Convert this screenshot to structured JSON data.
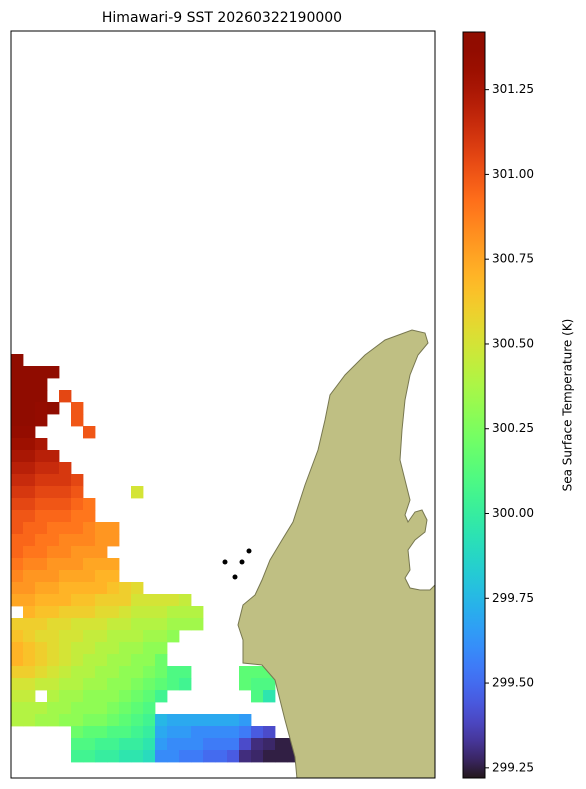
{
  "chart_data": {
    "type": "heatmap",
    "title": "Himawari-9 SST 20260322190000",
    "colorbar_label": "Sea Surface Temperature (K)",
    "colormap": "turbo",
    "clim": [
      299.22,
      301.42
    ],
    "cticks": [
      299.25,
      {
        "value": 299.5,
        "label": "299.50"
      },
      299.75,
      {
        "value": 300,
        "label": "300.00"
      },
      300.25,
      {
        "value": 300.5,
        "label": "300.50"
      },
      300.75,
      {
        "value": 301,
        "label": "301.00"
      },
      301.25
    ],
    "land_color": "#bfbf83",
    "values": [
      [
        301.4,
        null,
        null,
        null,
        null,
        null,
        null,
        null,
        null,
        null,
        null,
        null,
        null,
        null,
        null,
        null,
        null,
        null,
        null,
        null,
        null,
        null,
        null,
        null
      ],
      [
        301.4,
        301.4,
        301.4,
        301.4,
        null,
        null,
        null,
        null,
        null,
        null,
        null,
        null,
        null,
        null,
        null,
        null,
        null,
        null,
        null,
        null,
        null,
        null,
        null,
        null
      ],
      [
        301.4,
        301.4,
        301.4,
        null,
        null,
        null,
        null,
        null,
        null,
        null,
        null,
        null,
        null,
        null,
        null,
        null,
        null,
        null,
        null,
        null,
        null,
        null,
        null,
        null
      ],
      [
        301.4,
        301.4,
        301.4,
        null,
        301.05,
        null,
        null,
        null,
        null,
        null,
        null,
        null,
        null,
        null,
        null,
        null,
        null,
        null,
        null,
        null,
        null,
        null,
        null,
        null
      ],
      [
        301.4,
        301.4,
        301.35,
        301.4,
        null,
        301.0,
        null,
        null,
        null,
        null,
        null,
        null,
        null,
        null,
        null,
        null,
        null,
        null,
        null,
        null,
        null,
        null,
        null,
        null
      ],
      [
        301.4,
        301.4,
        301.35,
        null,
        null,
        301.0,
        null,
        null,
        null,
        null,
        null,
        null,
        null,
        null,
        null,
        null,
        null,
        null,
        null,
        null,
        null,
        null,
        null,
        null
      ],
      [
        301.35,
        301.35,
        null,
        null,
        null,
        null,
        301.0,
        null,
        null,
        null,
        null,
        null,
        null,
        null,
        null,
        null,
        null,
        null,
        null,
        null,
        null,
        null,
        null,
        null
      ],
      [
        301.3,
        301.3,
        301.25,
        null,
        null,
        null,
        null,
        null,
        null,
        null,
        null,
        null,
        null,
        null,
        null,
        null,
        null,
        null,
        null,
        null,
        null,
        null,
        null,
        null
      ],
      [
        301.25,
        301.25,
        301.2,
        301.2,
        null,
        null,
        null,
        null,
        null,
        null,
        null,
        null,
        null,
        null,
        null,
        null,
        null,
        null,
        null,
        null,
        null,
        null,
        null,
        null
      ],
      [
        301.2,
        301.2,
        301.15,
        301.15,
        301.1,
        null,
        null,
        null,
        null,
        null,
        null,
        null,
        null,
        null,
        null,
        null,
        null,
        null,
        null,
        null,
        null,
        null,
        null,
        null
      ],
      [
        301.15,
        301.15,
        301.1,
        301.1,
        301.1,
        301.05,
        null,
        null,
        null,
        null,
        null,
        null,
        null,
        null,
        null,
        null,
        null,
        null,
        null,
        null,
        null,
        null,
        null,
        null
      ],
      [
        301.1,
        301.1,
        301.05,
        301.05,
        301.05,
        301.0,
        null,
        null,
        null,
        null,
        300.5,
        null,
        null,
        null,
        null,
        null,
        null,
        null,
        null,
        null,
        null,
        null,
        null,
        null
      ],
      [
        301.05,
        301.05,
        301.0,
        301.0,
        301.0,
        300.95,
        300.9,
        null,
        null,
        null,
        null,
        null,
        null,
        null,
        null,
        null,
        null,
        null,
        null,
        null,
        null,
        null,
        null,
        null
      ],
      [
        301.0,
        301.0,
        300.95,
        300.95,
        300.95,
        300.9,
        300.9,
        null,
        null,
        null,
        null,
        null,
        null,
        null,
        null,
        null,
        null,
        null,
        null,
        null,
        null,
        null,
        null,
        null
      ],
      [
        301.0,
        300.95,
        300.95,
        300.9,
        300.9,
        300.9,
        300.85,
        300.8,
        300.8,
        null,
        null,
        null,
        null,
        null,
        null,
        null,
        null,
        null,
        null,
        null,
        null,
        null,
        null,
        null
      ],
      [
        300.95,
        300.95,
        300.9,
        300.9,
        300.85,
        300.85,
        300.85,
        300.8,
        300.8,
        null,
        null,
        null,
        null,
        null,
        null,
        null,
        null,
        null,
        null,
        null,
        null,
        null,
        null,
        null
      ],
      [
        300.95,
        300.9,
        300.9,
        300.85,
        300.85,
        300.8,
        300.8,
        300.8,
        null,
        null,
        null,
        null,
        null,
        null,
        null,
        null,
        null,
        null,
        null,
        null,
        null,
        null,
        null,
        null
      ],
      [
        300.9,
        300.85,
        300.85,
        300.8,
        300.8,
        300.8,
        300.75,
        300.75,
        300.75,
        null,
        null,
        null,
        null,
        null,
        null,
        null,
        null,
        null,
        null,
        null,
        null,
        null,
        null,
        null
      ],
      [
        300.85,
        300.8,
        300.8,
        300.8,
        300.75,
        300.75,
        300.75,
        300.7,
        300.7,
        null,
        null,
        null,
        null,
        null,
        null,
        null,
        null,
        null,
        null,
        null,
        null,
        null,
        null,
        null
      ],
      [
        300.8,
        300.8,
        300.75,
        300.75,
        300.7,
        300.7,
        300.7,
        300.7,
        300.65,
        300.6,
        300.55,
        null,
        null,
        null,
        null,
        null,
        null,
        null,
        null,
        null,
        null,
        null,
        null,
        null
      ],
      [
        300.75,
        300.75,
        300.7,
        300.7,
        300.7,
        300.65,
        300.65,
        300.6,
        300.6,
        300.6,
        300.5,
        300.5,
        300.5,
        300.5,
        300.45,
        null,
        null,
        null,
        null,
        null,
        null,
        null,
        null,
        null
      ],
      [
        null,
        300.7,
        300.65,
        300.65,
        300.6,
        300.6,
        300.6,
        300.55,
        300.55,
        300.5,
        300.45,
        300.45,
        300.45,
        300.4,
        300.4,
        300.4,
        null,
        null,
        null,
        null,
        null,
        null,
        null,
        null
      ],
      [
        300.6,
        300.6,
        300.6,
        300.55,
        300.55,
        300.5,
        300.5,
        300.5,
        300.45,
        300.45,
        300.4,
        300.4,
        300.4,
        300.35,
        300.35,
        300.35,
        null,
        null,
        null,
        null,
        null,
        null,
        null,
        null
      ],
      [
        300.65,
        300.6,
        300.55,
        300.55,
        300.5,
        300.5,
        300.45,
        300.45,
        300.4,
        300.4,
        300.4,
        300.35,
        300.35,
        300.3,
        null,
        null,
        null,
        null,
        null,
        null,
        null,
        null,
        null,
        null
      ],
      [
        300.7,
        300.65,
        300.6,
        300.55,
        300.5,
        300.45,
        300.45,
        300.4,
        300.4,
        300.35,
        300.35,
        300.3,
        300.3,
        null,
        null,
        null,
        null,
        null,
        null,
        null,
        null,
        null,
        null,
        null
      ],
      [
        300.7,
        300.65,
        300.6,
        300.55,
        300.5,
        300.45,
        300.4,
        300.4,
        300.35,
        300.35,
        300.3,
        300.3,
        300.2,
        null,
        null,
        null,
        null,
        null,
        null,
        null,
        null,
        null,
        null,
        null
      ],
      [
        300.6,
        300.6,
        300.55,
        300.5,
        300.45,
        300.4,
        300.4,
        300.35,
        300.35,
        300.3,
        300.3,
        300.25,
        300.2,
        300.1,
        300.1,
        null,
        null,
        null,
        null,
        300.15,
        300.15,
        300.15,
        null,
        null
      ],
      [
        300.5,
        300.5,
        300.45,
        300.45,
        300.4,
        300.4,
        300.35,
        300.35,
        300.3,
        300.3,
        300.25,
        300.2,
        300.15,
        300.1,
        300.05,
        null,
        null,
        null,
        null,
        300.15,
        300.1,
        300.1,
        null,
        null
      ],
      [
        300.45,
        300.45,
        null,
        300.4,
        300.35,
        300.35,
        300.3,
        300.3,
        300.3,
        300.25,
        300.2,
        300.15,
        300.05,
        null,
        null,
        null,
        null,
        null,
        null,
        null,
        300.1,
        299.95,
        null,
        null
      ],
      [
        300.4,
        300.4,
        300.4,
        300.35,
        300.35,
        300.3,
        300.3,
        300.3,
        300.25,
        300.2,
        300.15,
        300.1,
        null,
        null,
        null,
        null,
        null,
        null,
        null,
        null,
        null,
        null,
        null,
        null
      ],
      [
        300.4,
        300.4,
        300.35,
        300.35,
        300.3,
        300.3,
        300.25,
        300.25,
        300.2,
        300.15,
        300.1,
        300.05,
        299.75,
        299.7,
        299.7,
        299.7,
        299.7,
        299.7,
        299.7,
        299.65,
        null,
        null,
        null,
        null
      ],
      [
        null,
        null,
        null,
        null,
        null,
        300.2,
        300.15,
        300.15,
        300.1,
        300.1,
        300.05,
        300.0,
        299.7,
        299.65,
        299.65,
        299.6,
        299.6,
        299.6,
        299.6,
        299.55,
        299.45,
        299.4,
        null,
        null
      ],
      [
        null,
        null,
        null,
        null,
        null,
        300.1,
        300.1,
        300.05,
        300.05,
        300.0,
        300.0,
        299.95,
        299.65,
        299.6,
        299.6,
        299.6,
        299.55,
        299.55,
        299.55,
        299.4,
        299.3,
        299.28,
        299.25,
        299.25
      ],
      [
        null,
        null,
        null,
        null,
        null,
        300.05,
        300.05,
        300.0,
        300.0,
        299.95,
        299.95,
        299.9,
        299.6,
        299.6,
        299.55,
        299.55,
        299.5,
        299.5,
        299.45,
        299.3,
        299.28,
        299.25,
        299.25,
        299.25
      ]
    ]
  }
}
